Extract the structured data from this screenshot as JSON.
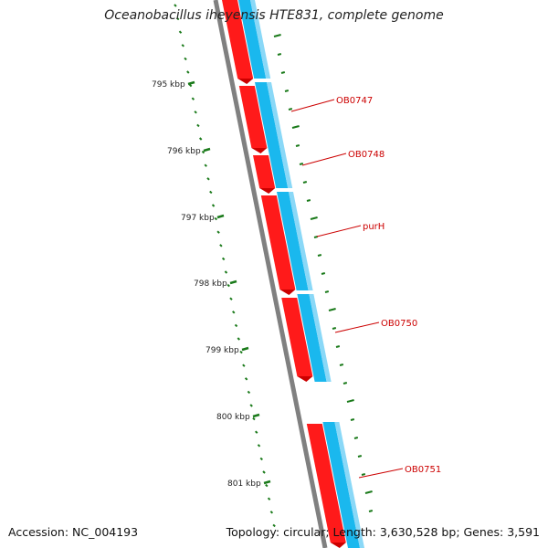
{
  "title": "Oceanobacillus iheyensis HTE831, complete genome",
  "footer": {
    "accession_label": "Accession:",
    "accession": "NC_004193",
    "topology_label": "Topology:",
    "topology": "circular",
    "length_label": "Length:",
    "length": "3,630,528 bp",
    "genes_label": "Genes:",
    "genes": "3,591"
  },
  "scale_labels": [
    "795 kbp",
    "796 kbp",
    "797 kbp",
    "798 kbp",
    "799 kbp",
    "800 kbp",
    "801 kbp"
  ],
  "gene_labels": [
    "OB0747",
    "OB0748",
    "purH",
    "OB0750",
    "OB0751"
  ],
  "colors": {
    "forward_strand": "#ff1a1a",
    "reverse_strand": "#1ab8ee",
    "backbone": "#808080",
    "ticks": "#1a7a1a",
    "labels": "#cc0000"
  }
}
